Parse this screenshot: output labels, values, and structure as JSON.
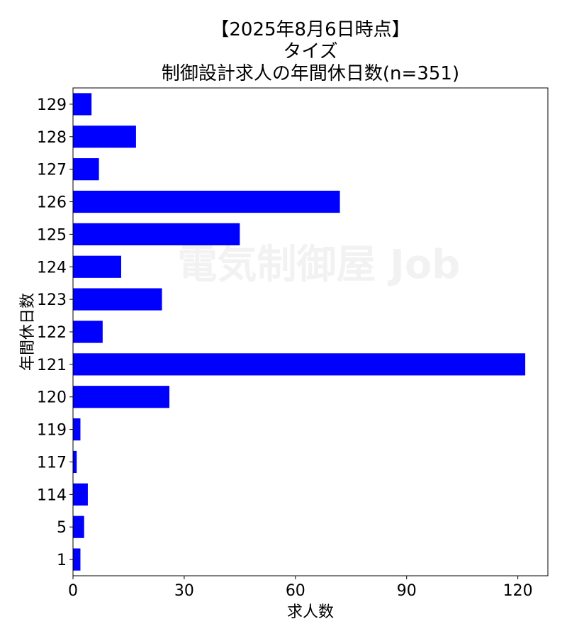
{
  "chart_data": {
    "type": "bar",
    "orientation": "horizontal",
    "title_lines": [
      "【2025年8月6日時点】",
      "タイズ",
      "制御設計求人の年間休日数(n=351)"
    ],
    "xlabel": "求人数",
    "ylabel": "年間休日数",
    "categories": [
      "1",
      "5",
      "114",
      "117",
      "119",
      "120",
      "121",
      "122",
      "123",
      "124",
      "125",
      "126",
      "127",
      "128",
      "129"
    ],
    "values": [
      2,
      3,
      4,
      1,
      2,
      26,
      122,
      8,
      24,
      13,
      45,
      72,
      7,
      17,
      5
    ],
    "xlim": [
      0,
      128.1
    ],
    "xticks": [
      "0",
      "30",
      "60",
      "90",
      "120"
    ],
    "bar_color": "#0000ff",
    "grid": false,
    "legend": "none",
    "watermark": "電気制御屋 Job"
  }
}
